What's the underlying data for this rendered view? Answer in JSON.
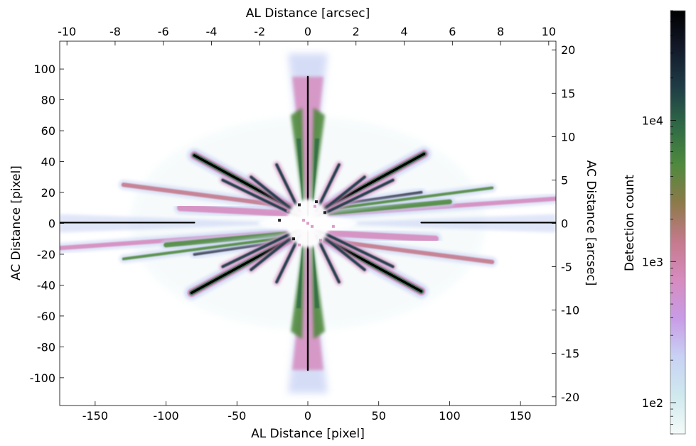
{
  "chart_data": {
    "type": "heatmap",
    "title": "",
    "x_bottom": {
      "label": "AL Distance [pixel]",
      "range": [
        -175,
        175
      ],
      "ticks": [
        -150,
        -100,
        -50,
        0,
        50,
        100,
        150
      ]
    },
    "x_top": {
      "label": "AL Distance [arcsec]",
      "range": [
        -10.3,
        10.3
      ],
      "ticks": [
        -10,
        -8,
        -6,
        -4,
        -2,
        0,
        2,
        4,
        6,
        8,
        10
      ]
    },
    "y_left": {
      "label": "AC Distance [pixel]",
      "range": [
        -118,
        118
      ],
      "ticks": [
        100,
        80,
        60,
        40,
        20,
        0,
        -20,
        -40,
        -60,
        -80,
        -100
      ]
    },
    "y_right": {
      "label": "AC Distance [arcsec]",
      "range": [
        -21,
        21
      ],
      "ticks": [
        20,
        15,
        10,
        5,
        0,
        -5,
        -10,
        -15,
        -20
      ]
    },
    "colorbar": {
      "label": "Detection count",
      "scale": "log",
      "range": [
        60,
        60000
      ],
      "ticks": [
        {
          "value": 100,
          "label": "1e2"
        },
        {
          "value": 1000,
          "label": "1e3"
        },
        {
          "value": 10000,
          "label": "1e4"
        }
      ],
      "colors": [
        "#f4fbf8",
        "#cfe9ee",
        "#c8d2f4",
        "#c89ce6",
        "#d68cbf",
        "#c57a8c",
        "#8d7a4a",
        "#4f8a3e",
        "#2f6a46",
        "#1f3d46",
        "#131a2a",
        "#000000"
      ]
    },
    "features": [
      {
        "name": "horizontal spike",
        "x": [
          -175,
          175
        ],
        "y": [
          0.5,
          0.5
        ]
      },
      {
        "name": "vertical spike",
        "x": [
          0,
          0
        ],
        "y": [
          -118,
          118
        ]
      },
      {
        "name": "diagonal spike upper-left",
        "x": [
          -80,
          -8
        ],
        "y": [
          44,
          8
        ]
      },
      {
        "name": "diagonal spike lower-right",
        "x": [
          8,
          80
        ],
        "y": [
          -8,
          -44
        ]
      },
      {
        "name": "diagonal spike upper-right",
        "x": [
          8,
          82
        ],
        "y": [
          8,
          45
        ]
      },
      {
        "name": "diagonal spike lower-left",
        "x": [
          -8,
          -82
        ],
        "y": [
          -8,
          -45
        ]
      }
    ]
  }
}
